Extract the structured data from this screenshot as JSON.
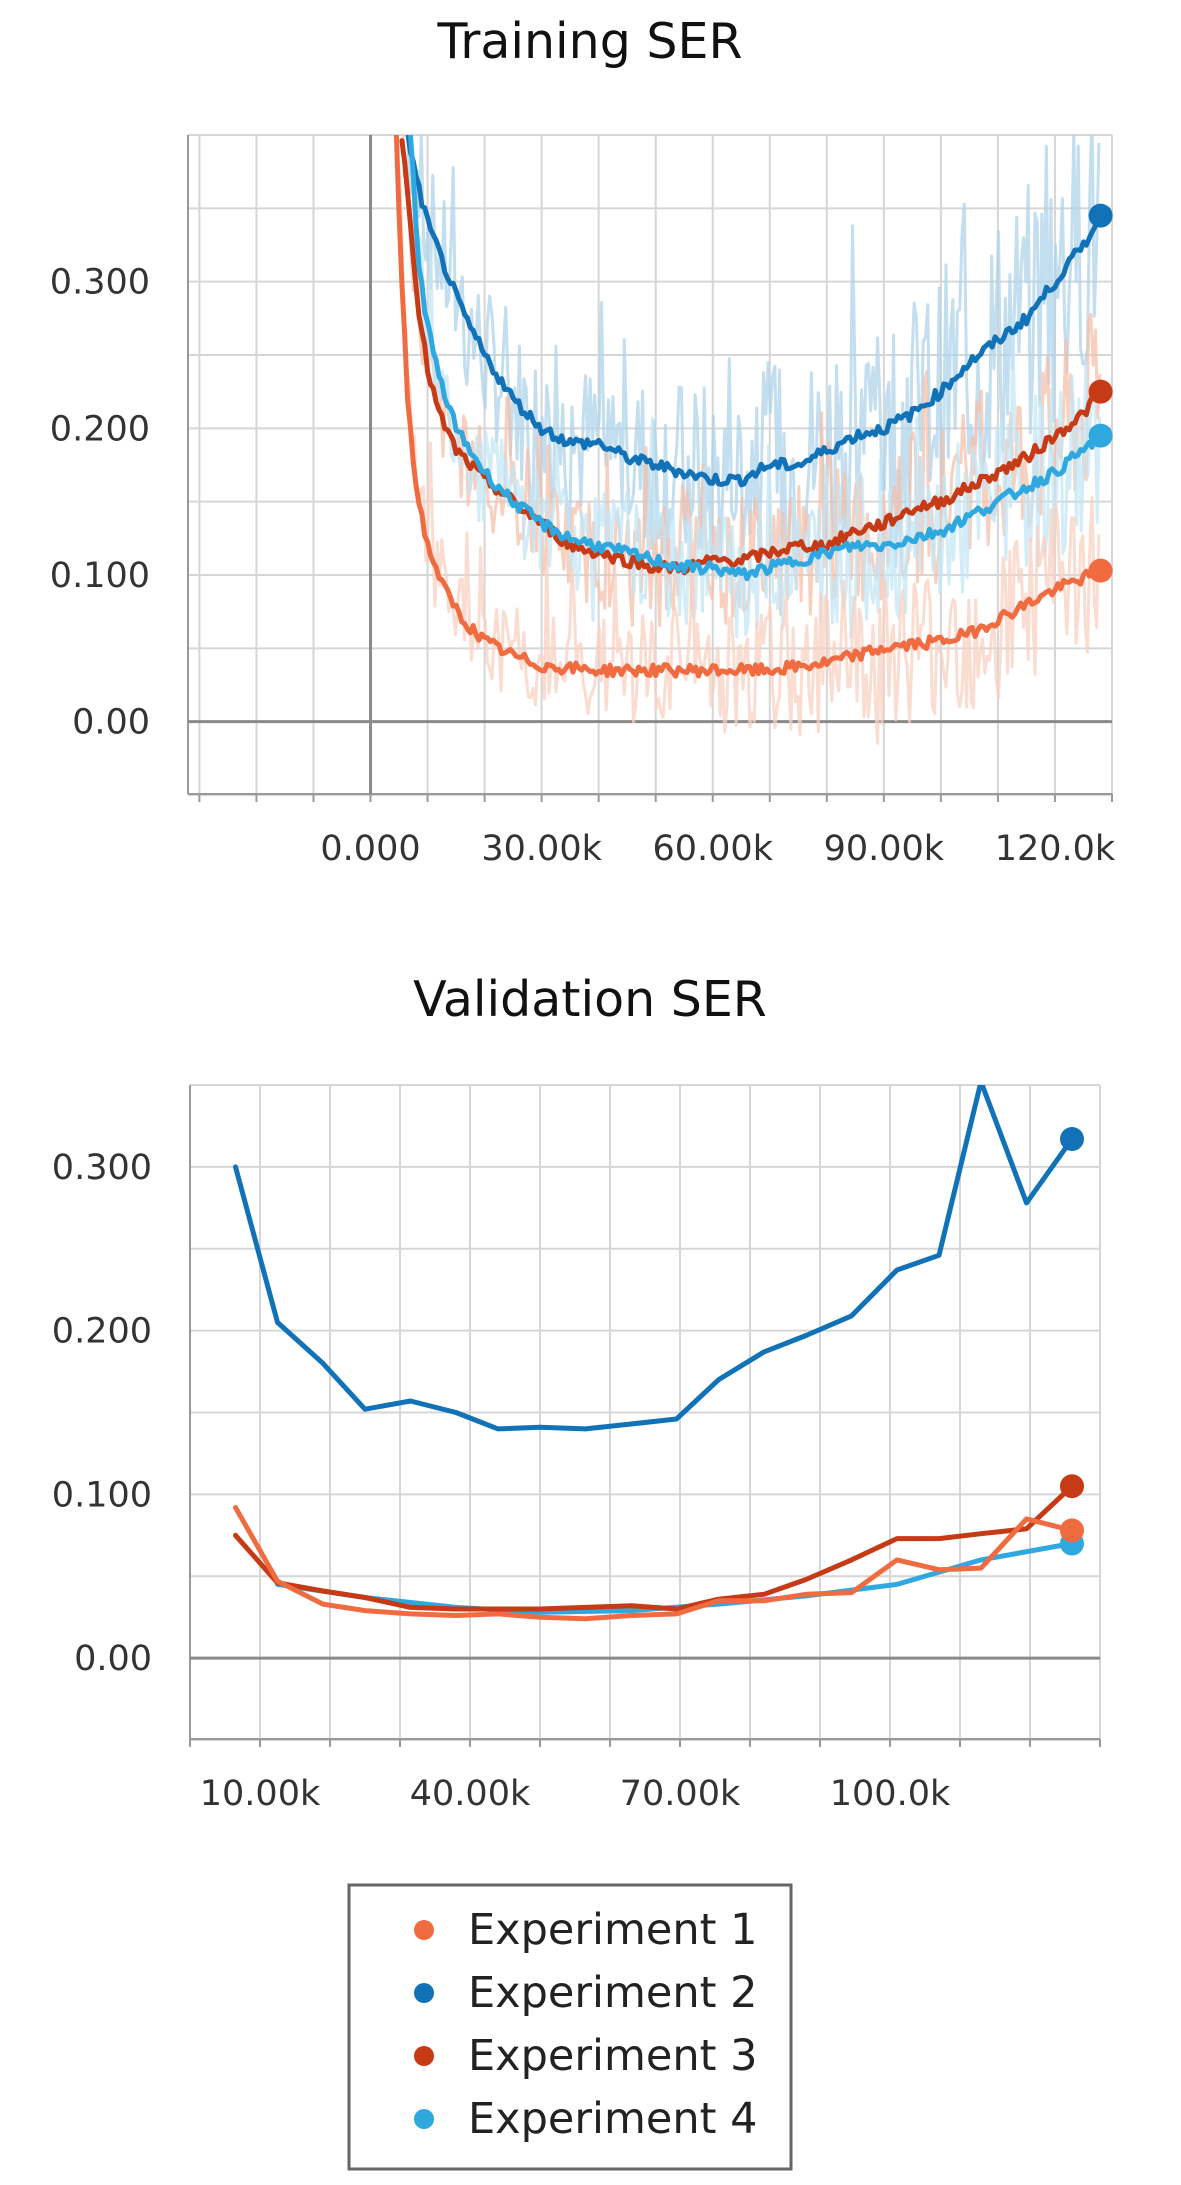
{
  "chart_data": [
    {
      "type": "line",
      "title": "Training SER",
      "xlabel": "",
      "ylabel": "",
      "xlim": [
        -32000,
        130000
      ],
      "ylim": [
        -0.05,
        0.4
      ],
      "xticks": [
        {
          "value": 0,
          "label": "0.000"
        },
        {
          "value": 30000,
          "label": "30.00k"
        },
        {
          "value": 60000,
          "label": "60.00k"
        },
        {
          "value": 90000,
          "label": "90.00k"
        },
        {
          "value": 120000,
          "label": "120.0k"
        }
      ],
      "yticks": [
        {
          "value": 0,
          "label": "0.00"
        },
        {
          "value": 0.1,
          "label": "0.100"
        },
        {
          "value": 0.2,
          "label": "0.200"
        },
        {
          "value": 0.3,
          "label": "0.300"
        }
      ],
      "grid": true,
      "series": [
        {
          "name": "Experiment 2",
          "color": "#1172b8",
          "band_color": "#aed3ea",
          "x": [
            6500,
            8000,
            10000,
            13000,
            16000,
            20000,
            25000,
            30000,
            35000,
            40000,
            45000,
            50000,
            55000,
            60000,
            65000,
            70000,
            75000,
            80000,
            85000,
            90000,
            95000,
            100000,
            105000,
            110000,
            115000,
            120000,
            125000,
            128000
          ],
          "y": [
            0.4,
            0.37,
            0.34,
            0.31,
            0.28,
            0.25,
            0.22,
            0.2,
            0.19,
            0.19,
            0.18,
            0.175,
            0.17,
            0.165,
            0.165,
            0.175,
            0.175,
            0.185,
            0.195,
            0.2,
            0.21,
            0.225,
            0.245,
            0.26,
            0.275,
            0.3,
            0.325,
            0.345
          ]
        },
        {
          "name": "Experiment 3",
          "color": "#c63a16",
          "band_color": "#f4c0ab",
          "x": [
            5500,
            7000,
            8500,
            10000,
            12000,
            15000,
            20000,
            25000,
            30000,
            35000,
            40000,
            45000,
            50000,
            55000,
            60000,
            65000,
            70000,
            75000,
            80000,
            85000,
            90000,
            95000,
            100000,
            105000,
            110000,
            115000,
            120000,
            125000,
            128000
          ],
          "y": [
            0.4,
            0.34,
            0.28,
            0.24,
            0.21,
            0.185,
            0.165,
            0.15,
            0.135,
            0.12,
            0.115,
            0.11,
            0.105,
            0.105,
            0.11,
            0.11,
            0.115,
            0.12,
            0.12,
            0.13,
            0.135,
            0.145,
            0.15,
            0.16,
            0.17,
            0.18,
            0.195,
            0.21,
            0.225
          ]
        },
        {
          "name": "Experiment 4",
          "color": "#2fa8e0",
          "band_color": "#c3e5f5",
          "x": [
            7000,
            8500,
            10000,
            12000,
            15000,
            20000,
            25000,
            30000,
            35000,
            40000,
            45000,
            50000,
            55000,
            60000,
            65000,
            70000,
            75000,
            80000,
            85000,
            90000,
            95000,
            100000,
            105000,
            110000,
            115000,
            120000,
            125000,
            128000
          ],
          "y": [
            0.4,
            0.31,
            0.27,
            0.235,
            0.2,
            0.17,
            0.15,
            0.135,
            0.125,
            0.12,
            0.115,
            0.11,
            0.105,
            0.105,
            0.1,
            0.105,
            0.11,
            0.115,
            0.12,
            0.12,
            0.125,
            0.13,
            0.14,
            0.15,
            0.16,
            0.17,
            0.185,
            0.195
          ]
        },
        {
          "name": "Experiment 1",
          "color": "#f06c40",
          "band_color": "#fad0c0",
          "x": [
            4500,
            5500,
            6500,
            8000,
            10000,
            13000,
            16000,
            20000,
            25000,
            30000,
            40000,
            50000,
            60000,
            70000,
            80000,
            85000,
            90000,
            100000,
            105000,
            110000,
            115000,
            120000,
            125000,
            128000
          ],
          "y": [
            0.4,
            0.3,
            0.22,
            0.16,
            0.12,
            0.09,
            0.07,
            0.055,
            0.045,
            0.038,
            0.035,
            0.035,
            0.035,
            0.035,
            0.04,
            0.045,
            0.05,
            0.055,
            0.06,
            0.07,
            0.08,
            0.09,
            0.098,
            0.103
          ]
        }
      ]
    },
    {
      "type": "line",
      "title": "Validation SER",
      "xlabel": "",
      "ylabel": "",
      "xlim": [
        0,
        130000
      ],
      "ylim": [
        -0.05,
        0.35
      ],
      "xticks": [
        {
          "value": 10000,
          "label": "10.00k"
        },
        {
          "value": 40000,
          "label": "40.00k"
        },
        {
          "value": 70000,
          "label": "70.00k"
        },
        {
          "value": 100000,
          "label": "100.0k"
        }
      ],
      "yticks": [
        {
          "value": 0,
          "label": "0.00"
        },
        {
          "value": 0.1,
          "label": "0.100"
        },
        {
          "value": 0.2,
          "label": "0.200"
        },
        {
          "value": 0.3,
          "label": "0.300"
        }
      ],
      "grid": true,
      "series": [
        {
          "name": "Experiment 2",
          "color": "#1172b8",
          "x": [
            6500,
            12500,
            19000,
            25000,
            31500,
            38000,
            44000,
            50000,
            56500,
            63000,
            69500,
            75500,
            82000,
            88000,
            94500,
            101000,
            107000,
            113000,
            119500,
            126000
          ],
          "y": [
            0.3,
            0.205,
            0.18,
            0.152,
            0.157,
            0.15,
            0.14,
            0.141,
            0.14,
            0.143,
            0.146,
            0.17,
            0.187,
            0.197,
            0.209,
            0.237,
            0.246,
            0.352,
            0.278,
            0.317
          ]
        },
        {
          "name": "Experiment 4",
          "color": "#2fa8e0",
          "x": [
            12500,
            25000,
            38000,
            50000,
            63000,
            75500,
            88000,
            101000,
            113000,
            126000
          ],
          "y": [
            0.045,
            0.037,
            0.031,
            0.028,
            0.029,
            0.033,
            0.038,
            0.045,
            0.06,
            0.07
          ]
        },
        {
          "name": "Experiment 3",
          "color": "#c63a16",
          "x": [
            6500,
            12500,
            19000,
            25000,
            31500,
            38000,
            44000,
            50000,
            56500,
            63000,
            69500,
            75500,
            82000,
            88000,
            94500,
            101000,
            107000,
            113000,
            119500,
            126000
          ],
          "y": [
            0.075,
            0.046,
            0.041,
            0.037,
            0.031,
            0.03,
            0.03,
            0.03,
            0.031,
            0.032,
            0.03,
            0.036,
            0.039,
            0.048,
            0.06,
            0.073,
            0.073,
            0.076,
            0.079,
            0.105
          ]
        },
        {
          "name": "Experiment 1",
          "color": "#f06c40",
          "x": [
            6500,
            12500,
            19000,
            25000,
            31500,
            38000,
            44000,
            50000,
            56500,
            63000,
            69500,
            75500,
            82000,
            88000,
            94500,
            101000,
            107000,
            113000,
            119500,
            126000
          ],
          "y": [
            0.092,
            0.047,
            0.033,
            0.029,
            0.027,
            0.026,
            0.027,
            0.025,
            0.024,
            0.026,
            0.027,
            0.035,
            0.035,
            0.039,
            0.04,
            0.06,
            0.054,
            0.055,
            0.085,
            0.078
          ]
        }
      ]
    }
  ],
  "legend": {
    "placement": "bottom",
    "items": [
      {
        "label": "Experiment 1",
        "color": "#f06c40"
      },
      {
        "label": "Experiment 2",
        "color": "#1172b8"
      },
      {
        "label": "Experiment 3",
        "color": "#c63a16"
      },
      {
        "label": "Experiment 4",
        "color": "#2fa8e0"
      }
    ]
  }
}
